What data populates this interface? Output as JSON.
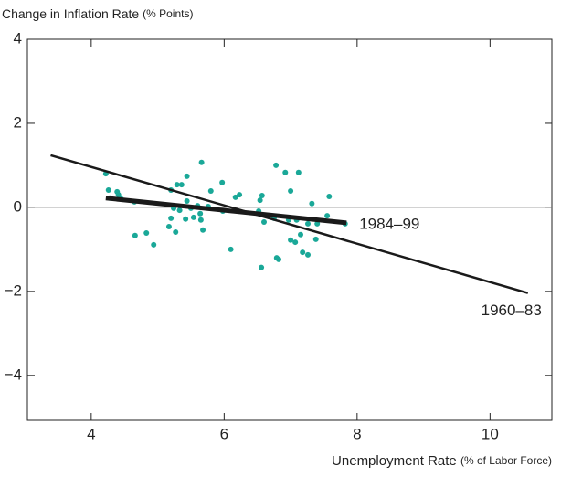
{
  "chart_data": {
    "type": "scatter",
    "y_label": "Change in Inflation Rate",
    "y_label_unit": "(% Points)",
    "x_label": "Unemployment Rate",
    "x_label_unit": "(% of Labor Force)",
    "xlim": [
      3.04,
      10.93
    ],
    "ylim": [
      -5.07,
      4
    ],
    "xticks": [
      4,
      6,
      8,
      10
    ],
    "yticks": [
      4,
      2,
      0,
      {
        "value": -2,
        "label": "−2"
      },
      {
        "value": -4,
        "label": "−4"
      }
    ],
    "zero_line": true,
    "series": [
      {
        "color": "#1aa898",
        "x": [
          4.22,
          4.26,
          4.28,
          4.39,
          4.41,
          4.45,
          4.65,
          4.66,
          4.83,
          4.94,
          5.17,
          5.2,
          5.2,
          5.24,
          5.27,
          5.29,
          5.33,
          5.36,
          5.42,
          5.44,
          5.44,
          5.5,
          5.54,
          5.6,
          5.64,
          5.65,
          5.66,
          5.68,
          5.76,
          5.8,
          5.97,
          5.98,
          6.1,
          6.17,
          6.23,
          6.52,
          6.54,
          6.56,
          6.57,
          6.6,
          6.75,
          6.78,
          6.79,
          6.82,
          6.92,
          6.97,
          7.0,
          7.0,
          7.07,
          7.09,
          7.12,
          7.15,
          7.18,
          7.26,
          7.26,
          7.32,
          7.38,
          7.4,
          7.55,
          7.58,
          7.82
        ],
        "values": [
          0.8,
          0.41,
          0.22,
          0.37,
          0.3,
          0.2,
          0.13,
          -0.67,
          -0.61,
          -0.89,
          -0.46,
          -0.26,
          0.41,
          -0.02,
          -0.59,
          0.54,
          -0.07,
          0.54,
          -0.28,
          0.74,
          0.15,
          -0.02,
          -0.24,
          0.04,
          -0.15,
          -0.3,
          1.07,
          -0.54,
          0.02,
          0.39,
          0.59,
          -0.09,
          -1.0,
          0.24,
          0.3,
          -0.09,
          0.17,
          -1.43,
          0.28,
          -0.35,
          -0.26,
          1.0,
          -1.2,
          -1.24,
          0.83,
          -0.3,
          0.39,
          -0.78,
          -0.83,
          -0.3,
          0.83,
          -0.65,
          -1.07,
          -1.13,
          -0.39,
          0.09,
          -0.76,
          -0.39,
          -0.2,
          0.26,
          -0.39
        ]
      }
    ],
    "lines": [
      {
        "name": "1960–83",
        "color": "#1a1a1a",
        "width": 2.5,
        "x": [
          3.39,
          10.57
        ],
        "values": [
          1.24,
          -2.04
        ]
      },
      {
        "name": "1984–99",
        "color": "#1a1a1a",
        "width": 5,
        "x": [
          4.22,
          7.84
        ],
        "values": [
          0.22,
          -0.37
        ]
      }
    ]
  }
}
